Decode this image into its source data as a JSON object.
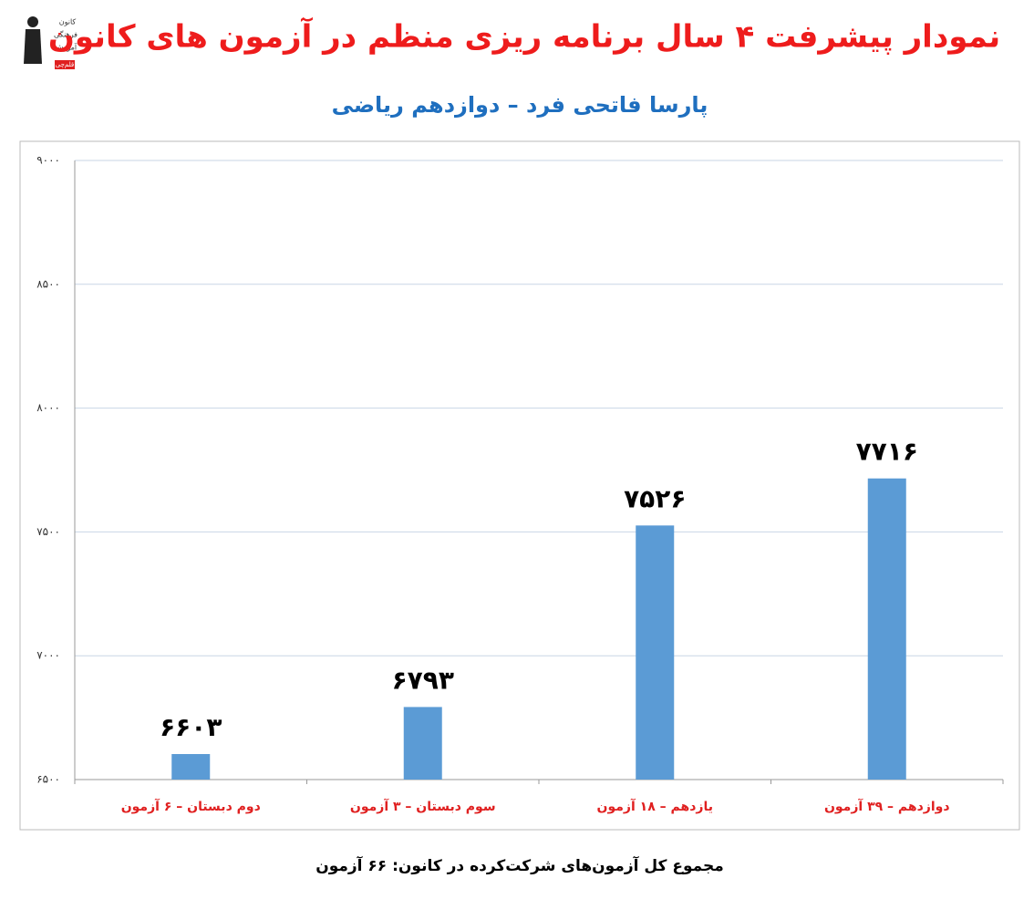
{
  "logo": {
    "lines": [
      "کانون",
      "فرهنگی",
      "آموزش",
      "قلم‌چی"
    ]
  },
  "chart_data": {
    "type": "bar",
    "title": "نمودار پیشرفت ۴ سال برنامه ریزی منظم در آزمون های کانون",
    "subtitle": "پارسا فاتحی فرد – دوازدهم ریاضی",
    "note": "مجموع کل آزمون‌های شرکت‌کرده در کانون:  ۶۶ آزمون",
    "categories": [
      "دوم دبستان – ۶ آزمون",
      "سوم دبستان – ۳ آزمون",
      "یازدهم – ۱۸ آزمون",
      "دوازدهم – ۳۹ آزمون"
    ],
    "values": [
      6603,
      6793,
      7526,
      7716
    ],
    "value_labels": [
      "۶۶۰۳",
      "۶۷۹۳",
      "۷۵۲۶",
      "۷۷۱۶"
    ],
    "color": "#5b9bd5",
    "ylim": [
      6500,
      9000
    ],
    "yticks": [
      {
        "value": 6500,
        "label": "۶۵۰۰"
      },
      {
        "value": 7000,
        "label": "۷۰۰۰"
      },
      {
        "value": 7500,
        "label": "۷۵۰۰"
      },
      {
        "value": 8000,
        "label": "۸۰۰۰"
      },
      {
        "value": 8500,
        "label": "۸۵۰۰"
      },
      {
        "value": 9000,
        "label": "۹۰۰۰"
      }
    ],
    "grid": true
  }
}
